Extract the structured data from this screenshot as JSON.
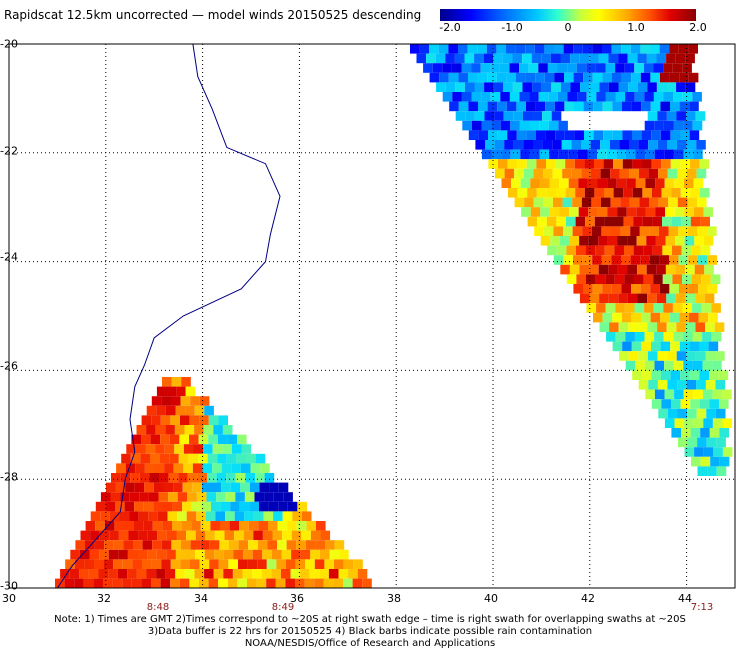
{
  "title": "Rapidscat 12.5km uncorrected — model winds 20150525 descending",
  "colorbar": {
    "ticks": [
      "-2.0",
      "-1.0",
      "0",
      "1.0",
      "2.0"
    ],
    "values": [
      -2.0,
      -1.0,
      0,
      1.0,
      2.0
    ]
  },
  "map": {
    "lat_labels": [
      "-20",
      "-22",
      "-24",
      "-26",
      "-28",
      "-30"
    ],
    "lat_values": [
      -20,
      -22,
      -24,
      -26,
      -28,
      -30
    ],
    "lon_labels": [
      "30",
      "32",
      "34",
      "36",
      "38",
      "40",
      "42",
      "44"
    ],
    "lon_values": [
      30,
      32,
      34,
      36,
      38,
      40,
      42,
      44
    ],
    "lat_range": [
      -30,
      -20
    ],
    "lon_range": [
      30,
      45
    ],
    "swath_times": [
      {
        "label": "8:48",
        "lon": 33.2
      },
      {
        "label": "8:49",
        "lon": 35.7
      },
      {
        "label": "7:13",
        "lon": 43.6
      }
    ],
    "colors": {
      "coastline": "#000080",
      "grid": "#000000",
      "time_label": "#8b1a1a"
    }
  },
  "notes": {
    "line1": "Note: 1) Times are GMT 2)Times correspond to ~20S at right swath edge – time is right swath for overlapping swaths at ~20S",
    "line2": "3)Data buffer is 22 hrs for 20150525 4) Black barbs indicate possible rain contamination",
    "line3": "NOAA/NESDIS/Office of Research and Applications"
  }
}
